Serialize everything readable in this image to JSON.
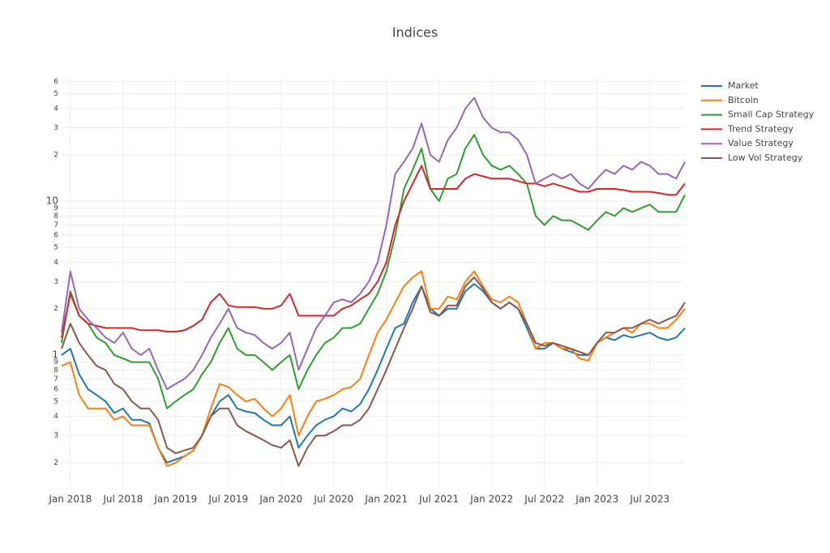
{
  "chart_data": {
    "type": "line",
    "title": "Indices",
    "log_y": true,
    "grid": true,
    "legend": "right",
    "x": [
      "2017-12",
      "2018-01",
      "2018-02",
      "2018-03",
      "2018-04",
      "2018-05",
      "2018-06",
      "2018-07",
      "2018-08",
      "2018-09",
      "2018-10",
      "2018-11",
      "2018-12",
      "2019-01",
      "2019-02",
      "2019-03",
      "2019-04",
      "2019-05",
      "2019-06",
      "2019-07",
      "2019-08",
      "2019-09",
      "2019-10",
      "2019-11",
      "2019-12",
      "2020-01",
      "2020-02",
      "2020-03",
      "2020-04",
      "2020-05",
      "2020-06",
      "2020-07",
      "2020-08",
      "2020-09",
      "2020-10",
      "2020-11",
      "2020-12",
      "2021-01",
      "2021-02",
      "2021-03",
      "2021-04",
      "2021-05",
      "2021-06",
      "2021-07",
      "2021-08",
      "2021-09",
      "2021-10",
      "2021-11",
      "2021-12",
      "2022-01",
      "2022-02",
      "2022-03",
      "2022-04",
      "2022-05",
      "2022-06",
      "2022-07",
      "2022-08",
      "2022-09",
      "2022-10",
      "2022-11",
      "2022-12",
      "2023-01",
      "2023-02",
      "2023-03",
      "2023-04",
      "2023-05",
      "2023-06",
      "2023-07",
      "2023-08",
      "2023-09",
      "2023-10",
      "2023-11"
    ],
    "xlim": [
      "2017-12",
      "2023-11"
    ],
    "xticks": [
      {
        "value": "2018-01",
        "label": "Jan 2018"
      },
      {
        "value": "2018-07",
        "label": "Jul 2018"
      },
      {
        "value": "2019-01",
        "label": "Jan 2019"
      },
      {
        "value": "2019-07",
        "label": "Jul 2019"
      },
      {
        "value": "2020-01",
        "label": "Jan 2020"
      },
      {
        "value": "2020-07",
        "label": "Jul 2020"
      },
      {
        "value": "2021-01",
        "label": "Jan 2021"
      },
      {
        "value": "2021-07",
        "label": "Jul 2021"
      },
      {
        "value": "2022-01",
        "label": "Jan 2022"
      },
      {
        "value": "2022-07",
        "label": "Jul 2022"
      },
      {
        "value": "2023-01",
        "label": "Jan 2023"
      },
      {
        "value": "2023-07",
        "label": "Jul 2023"
      }
    ],
    "ylim": [
      0.14,
      64
    ],
    "yticks": [
      {
        "value": 0.2,
        "label": "2"
      },
      {
        "value": 0.3,
        "label": "3"
      },
      {
        "value": 0.4,
        "label": "4"
      },
      {
        "value": 0.5,
        "label": "5"
      },
      {
        "value": 0.6,
        "label": "6"
      },
      {
        "value": 0.7,
        "label": "7"
      },
      {
        "value": 0.8,
        "label": "8"
      },
      {
        "value": 0.9,
        "label": "9"
      },
      1,
      2,
      3,
      4,
      5,
      6,
      7,
      8,
      9,
      10,
      {
        "value": 20,
        "label": "2"
      },
      {
        "value": 30,
        "label": "3"
      },
      {
        "value": 40,
        "label": "4"
      },
      {
        "value": 50,
        "label": "5"
      },
      {
        "value": 60,
        "label": "6"
      }
    ],
    "series": [
      {
        "name": "Market",
        "color": "#1f77b4",
        "values": [
          1.0,
          1.1,
          0.75,
          0.6,
          0.55,
          0.5,
          0.42,
          0.45,
          0.38,
          0.38,
          0.36,
          0.25,
          0.2,
          0.21,
          0.22,
          0.24,
          0.3,
          0.4,
          0.5,
          0.55,
          0.45,
          0.43,
          0.42,
          0.38,
          0.35,
          0.35,
          0.4,
          0.25,
          0.3,
          0.35,
          0.38,
          0.4,
          0.45,
          0.43,
          0.48,
          0.6,
          0.8,
          1.1,
          1.5,
          1.6,
          2.2,
          2.8,
          2.0,
          1.8,
          2.0,
          2.0,
          2.6,
          2.9,
          2.6,
          2.2,
          2.0,
          2.2,
          2.0,
          1.5,
          1.1,
          1.1,
          1.2,
          1.1,
          1.05,
          1.0,
          1.0,
          1.2,
          1.3,
          1.25,
          1.35,
          1.3,
          1.35,
          1.4,
          1.3,
          1.25,
          1.3,
          1.5
        ]
      },
      {
        "name": "Bitcoin",
        "color": "#ff7f0e",
        "values": [
          0.85,
          0.9,
          0.55,
          0.45,
          0.45,
          0.45,
          0.38,
          0.4,
          0.35,
          0.35,
          0.35,
          0.25,
          0.19,
          0.2,
          0.22,
          0.24,
          0.3,
          0.45,
          0.65,
          0.62,
          0.55,
          0.5,
          0.52,
          0.45,
          0.4,
          0.45,
          0.55,
          0.3,
          0.4,
          0.5,
          0.52,
          0.55,
          0.6,
          0.62,
          0.7,
          1.0,
          1.4,
          1.7,
          2.2,
          2.8,
          3.2,
          3.5,
          2.0,
          2.0,
          2.4,
          2.3,
          3.0,
          3.5,
          2.8,
          2.3,
          2.2,
          2.4,
          2.2,
          1.6,
          1.1,
          1.2,
          1.2,
          1.1,
          1.1,
          0.95,
          0.92,
          1.2,
          1.3,
          1.4,
          1.5,
          1.4,
          1.6,
          1.6,
          1.5,
          1.5,
          1.7,
          2.0
        ]
      },
      {
        "name": "Small Cap Strategy",
        "color": "#2ca02c",
        "values": [
          1.2,
          2.6,
          1.8,
          1.6,
          1.3,
          1.2,
          1.0,
          0.95,
          0.9,
          0.9,
          0.9,
          0.7,
          0.45,
          0.5,
          0.55,
          0.6,
          0.75,
          0.9,
          1.2,
          1.5,
          1.1,
          1.0,
          1.0,
          0.9,
          0.8,
          0.9,
          1.0,
          0.6,
          0.8,
          1.0,
          1.2,
          1.3,
          1.5,
          1.5,
          1.6,
          2.0,
          2.5,
          3.5,
          6,
          12,
          16,
          22,
          12,
          10,
          14,
          15,
          22,
          27,
          20,
          17,
          16,
          17,
          15,
          13,
          8,
          7,
          8,
          7.5,
          7.5,
          7,
          6.5,
          7.5,
          8.5,
          8,
          9,
          8.5,
          9,
          9.5,
          8.5,
          8.5,
          8.5,
          11
        ]
      },
      {
        "name": "Trend Strategy",
        "color": "#d62728",
        "values": [
          1.3,
          2.5,
          1.8,
          1.6,
          1.55,
          1.5,
          1.5,
          1.5,
          1.5,
          1.45,
          1.45,
          1.45,
          1.42,
          1.42,
          1.45,
          1.55,
          1.7,
          2.2,
          2.5,
          2.1,
          2.05,
          2.05,
          2.05,
          2.0,
          2.0,
          2.1,
          2.5,
          1.8,
          1.8,
          1.8,
          1.8,
          1.8,
          2.0,
          2.1,
          2.3,
          2.5,
          3.0,
          4.0,
          7,
          10,
          13,
          17,
          12,
          12,
          12,
          12,
          14,
          15,
          14.5,
          14,
          14,
          14,
          13.5,
          13,
          13,
          12.5,
          13,
          12.5,
          12,
          11.5,
          11.5,
          12,
          12,
          12,
          11.8,
          11.5,
          11.5,
          11.5,
          11.3,
          11,
          11,
          13
        ]
      },
      {
        "name": "Value Strategy",
        "color": "#9467bd",
        "values": [
          1.4,
          3.5,
          2.0,
          1.7,
          1.5,
          1.3,
          1.2,
          1.4,
          1.1,
          1.0,
          1.1,
          0.8,
          0.6,
          0.65,
          0.7,
          0.8,
          1.0,
          1.3,
          1.6,
          2.0,
          1.5,
          1.4,
          1.35,
          1.2,
          1.1,
          1.2,
          1.4,
          0.8,
          1.1,
          1.5,
          1.8,
          2.2,
          2.3,
          2.2,
          2.5,
          3.0,
          4.0,
          7,
          15,
          18,
          22,
          32,
          20,
          18,
          25,
          30,
          40,
          47,
          35,
          30,
          28,
          28,
          25,
          20,
          13,
          14,
          15,
          14,
          15,
          13,
          12,
          14,
          16,
          15,
          17,
          16,
          18,
          17,
          15,
          15,
          14,
          18
        ]
      },
      {
        "name": "Low Vol Strategy",
        "color": "#8c564b",
        "values": [
          1.1,
          1.6,
          1.2,
          1.0,
          0.85,
          0.8,
          0.65,
          0.6,
          0.5,
          0.45,
          0.45,
          0.38,
          0.25,
          0.23,
          0.24,
          0.25,
          0.3,
          0.4,
          0.45,
          0.45,
          0.35,
          0.32,
          0.3,
          0.28,
          0.26,
          0.25,
          0.28,
          0.19,
          0.25,
          0.3,
          0.3,
          0.32,
          0.35,
          0.35,
          0.38,
          0.45,
          0.6,
          0.8,
          1.1,
          1.5,
          2.0,
          2.8,
          1.9,
          1.8,
          2.1,
          2.1,
          2.8,
          3.2,
          2.7,
          2.2,
          2.0,
          2.2,
          2.0,
          1.6,
          1.2,
          1.15,
          1.2,
          1.15,
          1.1,
          1.05,
          1.0,
          1.2,
          1.4,
          1.4,
          1.5,
          1.5,
          1.6,
          1.7,
          1.6,
          1.7,
          1.8,
          2.2
        ]
      }
    ]
  }
}
